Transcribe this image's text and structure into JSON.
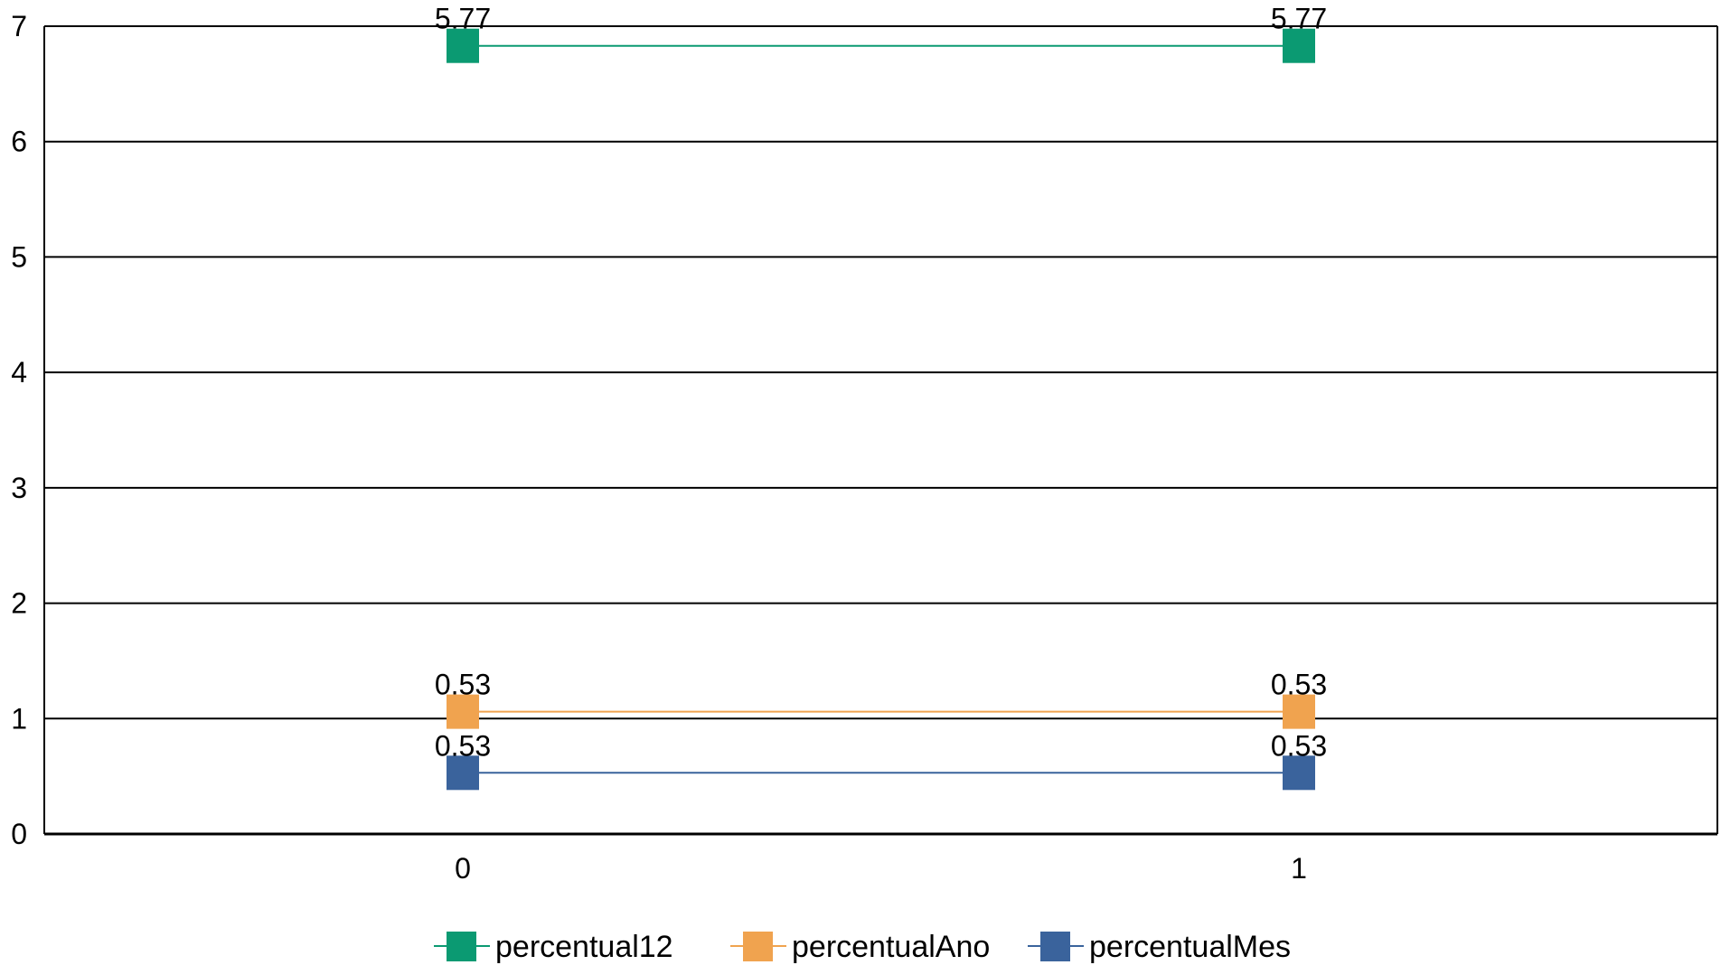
{
  "chart_data": {
    "type": "line",
    "x": [
      0,
      1
    ],
    "x_tick_labels": [
      "0",
      "1"
    ],
    "y_tick_labels": [
      "0",
      "1",
      "2",
      "3",
      "4",
      "5",
      "6",
      "7"
    ],
    "ylim": [
      0,
      7
    ],
    "grid": true,
    "legend_position": "bottom",
    "stacked": true,
    "series": [
      {
        "name": "percentual12",
        "values": [
          5.77,
          5.77
        ],
        "plotted": [
          6.83,
          6.83
        ],
        "labels": [
          "5.77",
          "5.77"
        ],
        "color": "#0b9a72"
      },
      {
        "name": "percentualAno",
        "values": [
          0.53,
          0.53
        ],
        "plotted": [
          1.06,
          1.06
        ],
        "labels": [
          "0.53",
          "0.53"
        ],
        "color": "#f0a34f"
      },
      {
        "name": "percentualMes",
        "values": [
          0.53,
          0.53
        ],
        "plotted": [
          0.53,
          0.53
        ],
        "labels": [
          "0.53",
          "0.53"
        ],
        "color": "#3a639c"
      }
    ]
  }
}
